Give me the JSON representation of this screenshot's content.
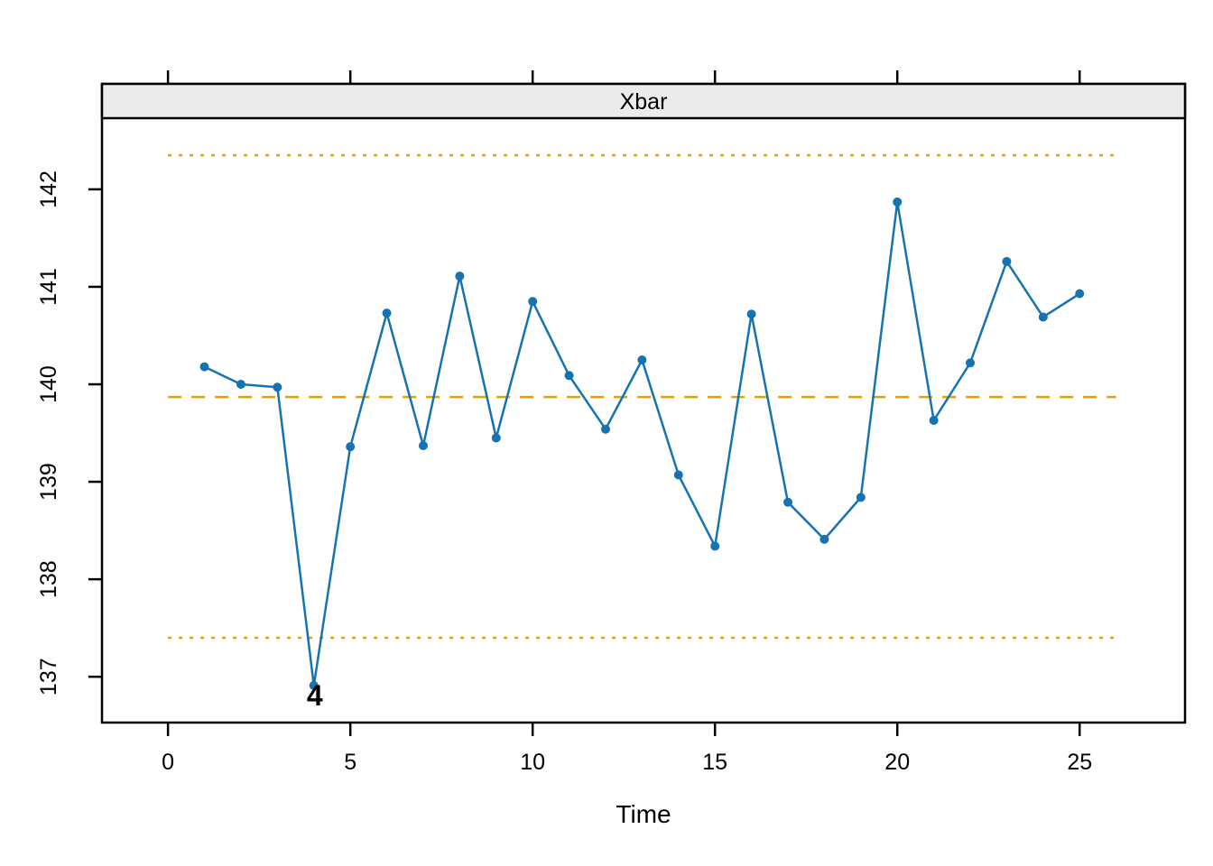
{
  "strip": {
    "title": "Xbar"
  },
  "x_axis": {
    "label": "Time"
  },
  "annotation": {
    "out_of_control_label": "4"
  },
  "colors": {
    "series": "#1673B1",
    "limits": "#E8A000",
    "strip_bg": "#EBEBEB",
    "border": "#000000",
    "background": "#FFFFFF"
  },
  "chart_data": {
    "type": "line",
    "title": "Xbar",
    "xlabel": "Time",
    "ylabel": "",
    "x": [
      1,
      2,
      3,
      4,
      5,
      6,
      7,
      8,
      9,
      10,
      11,
      12,
      13,
      14,
      15,
      16,
      17,
      18,
      19,
      20,
      21,
      22,
      23,
      24,
      25
    ],
    "values": [
      140.18,
      140.0,
      139.97,
      136.91,
      139.36,
      140.73,
      139.37,
      141.11,
      139.45,
      140.85,
      140.09,
      139.54,
      140.25,
      139.07,
      138.34,
      140.72,
      138.79,
      138.41,
      138.84,
      141.87,
      139.63,
      140.22,
      141.26,
      140.69,
      140.93
    ],
    "center": 139.87,
    "ucl": 142.35,
    "lcl": 137.4,
    "limit_lines_x_extent": [
      0,
      26
    ],
    "xticks": [
      0,
      5,
      10,
      15,
      20,
      25
    ],
    "yticks": [
      137,
      138,
      139,
      140,
      141,
      142
    ],
    "xlim": [
      -1.81,
      27.89
    ],
    "ylim": [
      136.53,
      142.73
    ],
    "grid": false,
    "legend": "none",
    "marker": "circle",
    "out_of_control": [
      {
        "index": 4,
        "label": "4",
        "side": "below"
      }
    ]
  }
}
